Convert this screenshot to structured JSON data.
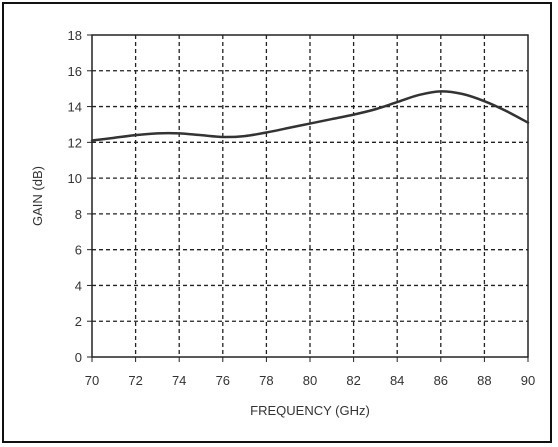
{
  "chart_data": {
    "type": "line",
    "title": "",
    "xlabel": "FREQUENCY (GHz)",
    "ylabel": "GAIN (dB)",
    "xlim": [
      70,
      90
    ],
    "ylim": [
      0,
      18
    ],
    "x_ticks": [
      70,
      72,
      74,
      76,
      78,
      80,
      82,
      84,
      86,
      88,
      90
    ],
    "y_ticks": [
      0,
      2,
      4,
      6,
      8,
      10,
      12,
      14,
      16,
      18
    ],
    "x_tick_labels": [
      "70",
      "72",
      "74",
      "76",
      "78",
      "80",
      "82",
      "84",
      "86",
      "88",
      "90"
    ],
    "y_tick_labels": [
      "0",
      "2",
      "4",
      "6",
      "8",
      "10",
      "12",
      "14",
      "16",
      "18"
    ],
    "grid": true,
    "grid_style": "dashed",
    "series": [
      {
        "x": [
          70,
          71,
          72,
          73,
          74,
          75,
          76,
          77,
          78,
          79,
          80,
          81,
          82,
          83,
          84,
          85,
          86,
          87,
          88,
          89,
          90
        ],
        "y": [
          12.1,
          12.25,
          12.4,
          12.5,
          12.5,
          12.4,
          12.3,
          12.35,
          12.55,
          12.8,
          13.05,
          13.3,
          13.55,
          13.85,
          14.25,
          14.65,
          14.85,
          14.7,
          14.3,
          13.75,
          13.1
        ],
        "color": "#333333"
      }
    ]
  }
}
